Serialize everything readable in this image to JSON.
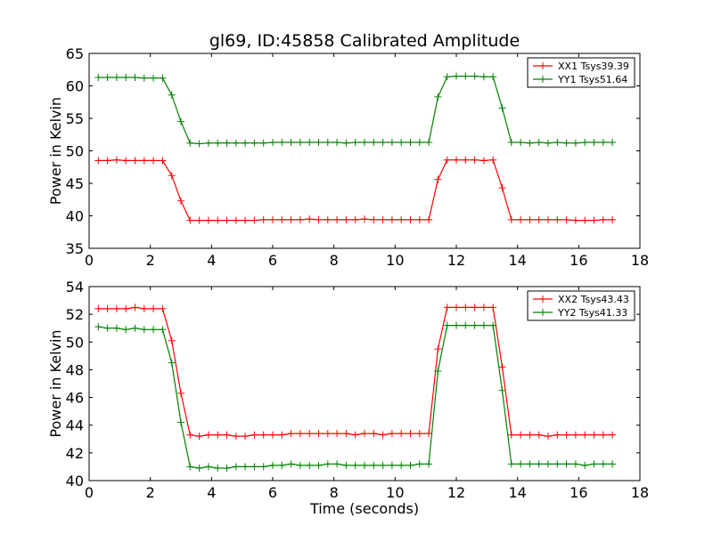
{
  "chart_data": [
    {
      "type": "line",
      "title": "gl69, ID:45858 Calibrated Amplitude",
      "xlabel": "",
      "ylabel": "Power in Kelvin",
      "xlim": [
        0,
        18
      ],
      "ylim": [
        35,
        65
      ],
      "xticks": [
        "0",
        "2",
        "4",
        "6",
        "8",
        "10",
        "12",
        "14",
        "16",
        "18"
      ],
      "yticks": [
        "35",
        "40",
        "45",
        "50",
        "55",
        "60",
        "65"
      ],
      "legend_position": "top-right",
      "x": [
        0.3,
        0.6,
        0.9,
        1.2,
        1.5,
        1.8,
        2.1,
        2.4,
        2.7,
        3.0,
        3.3,
        3.6,
        3.9,
        4.2,
        4.5,
        4.8,
        5.1,
        5.4,
        5.7,
        6.0,
        6.3,
        6.6,
        6.9,
        7.2,
        7.5,
        7.8,
        8.1,
        8.4,
        8.7,
        9.0,
        9.3,
        9.6,
        9.9,
        10.2,
        10.5,
        10.8,
        11.1,
        11.4,
        11.7,
        12.0,
        12.3,
        12.6,
        12.9,
        13.2,
        13.5,
        13.8,
        14.1,
        14.4,
        14.7,
        15.0,
        15.3,
        15.6,
        15.9,
        16.2,
        16.5,
        16.8,
        17.1
      ],
      "series": [
        {
          "name": "XX1 Tsys39.39",
          "color": "#ff0000",
          "values": [
            48.5,
            48.5,
            48.6,
            48.5,
            48.5,
            48.5,
            48.5,
            48.5,
            46.2,
            42.3,
            39.3,
            39.3,
            39.3,
            39.3,
            39.3,
            39.3,
            39.3,
            39.3,
            39.4,
            39.4,
            39.4,
            39.4,
            39.4,
            39.5,
            39.4,
            39.4,
            39.4,
            39.4,
            39.4,
            39.5,
            39.4,
            39.4,
            39.4,
            39.4,
            39.4,
            39.4,
            39.4,
            45.6,
            48.6,
            48.6,
            48.6,
            48.6,
            48.5,
            48.6,
            44.3,
            39.4,
            39.4,
            39.4,
            39.4,
            39.4,
            39.4,
            39.4,
            39.3,
            39.3,
            39.3,
            39.4,
            39.4
          ]
        },
        {
          "name": "YY1 Tsys51.64",
          "color": "#008000",
          "values": [
            61.3,
            61.3,
            61.3,
            61.3,
            61.3,
            61.2,
            61.2,
            61.2,
            58.6,
            54.5,
            51.2,
            51.1,
            51.2,
            51.2,
            51.2,
            51.2,
            51.2,
            51.2,
            51.2,
            51.3,
            51.3,
            51.3,
            51.3,
            51.3,
            51.3,
            51.3,
            51.3,
            51.2,
            51.3,
            51.3,
            51.3,
            51.3,
            51.3,
            51.3,
            51.3,
            51.3,
            51.3,
            58.3,
            61.4,
            61.5,
            61.5,
            61.5,
            61.4,
            61.4,
            56.6,
            51.3,
            51.3,
            51.2,
            51.3,
            51.2,
            51.3,
            51.2,
            51.2,
            51.3,
            51.3,
            51.3,
            51.3
          ]
        }
      ]
    },
    {
      "type": "line",
      "title": "",
      "xlabel": "Time (seconds)",
      "ylabel": "Power in Kelvin",
      "xlim": [
        0,
        18
      ],
      "ylim": [
        40,
        54
      ],
      "xticks": [
        "0",
        "2",
        "4",
        "6",
        "8",
        "10",
        "12",
        "14",
        "16",
        "18"
      ],
      "yticks": [
        "40",
        "42",
        "44",
        "46",
        "48",
        "50",
        "52",
        "54"
      ],
      "legend_position": "top-right",
      "x": [
        0.3,
        0.6,
        0.9,
        1.2,
        1.5,
        1.8,
        2.1,
        2.4,
        2.7,
        3.0,
        3.3,
        3.6,
        3.9,
        4.2,
        4.5,
        4.8,
        5.1,
        5.4,
        5.7,
        6.0,
        6.3,
        6.6,
        6.9,
        7.2,
        7.5,
        7.8,
        8.1,
        8.4,
        8.7,
        9.0,
        9.3,
        9.6,
        9.9,
        10.2,
        10.5,
        10.8,
        11.1,
        11.4,
        11.7,
        12.0,
        12.3,
        12.6,
        12.9,
        13.2,
        13.5,
        13.8,
        14.1,
        14.4,
        14.7,
        15.0,
        15.3,
        15.6,
        15.9,
        16.2,
        16.5,
        16.8,
        17.1
      ],
      "series": [
        {
          "name": "XX2 Tsys43.43",
          "color": "#ff0000",
          "values": [
            52.4,
            52.4,
            52.4,
            52.4,
            52.5,
            52.4,
            52.4,
            52.4,
            50.1,
            46.3,
            43.3,
            43.2,
            43.3,
            43.3,
            43.3,
            43.2,
            43.2,
            43.3,
            43.3,
            43.3,
            43.3,
            43.4,
            43.4,
            43.4,
            43.4,
            43.4,
            43.4,
            43.4,
            43.3,
            43.4,
            43.4,
            43.3,
            43.4,
            43.4,
            43.4,
            43.4,
            43.4,
            49.5,
            52.5,
            52.5,
            52.5,
            52.5,
            52.5,
            52.5,
            48.2,
            43.3,
            43.3,
            43.3,
            43.3,
            43.2,
            43.3,
            43.3,
            43.3,
            43.3,
            43.3,
            43.3,
            43.3
          ]
        },
        {
          "name": "YY2 Tsys41.33",
          "color": "#008000",
          "values": [
            51.1,
            51.0,
            51.0,
            50.9,
            51.0,
            50.9,
            50.9,
            50.9,
            48.5,
            44.2,
            41.0,
            40.9,
            41.0,
            40.9,
            40.9,
            41.0,
            41.0,
            41.0,
            41.0,
            41.1,
            41.1,
            41.2,
            41.1,
            41.1,
            41.1,
            41.2,
            41.2,
            41.1,
            41.1,
            41.1,
            41.1,
            41.1,
            41.1,
            41.1,
            41.1,
            41.2,
            41.2,
            47.9,
            51.2,
            51.2,
            51.2,
            51.2,
            51.2,
            51.2,
            46.5,
            41.2,
            41.2,
            41.2,
            41.2,
            41.2,
            41.2,
            41.2,
            41.2,
            41.1,
            41.2,
            41.2,
            41.2
          ]
        }
      ]
    }
  ]
}
